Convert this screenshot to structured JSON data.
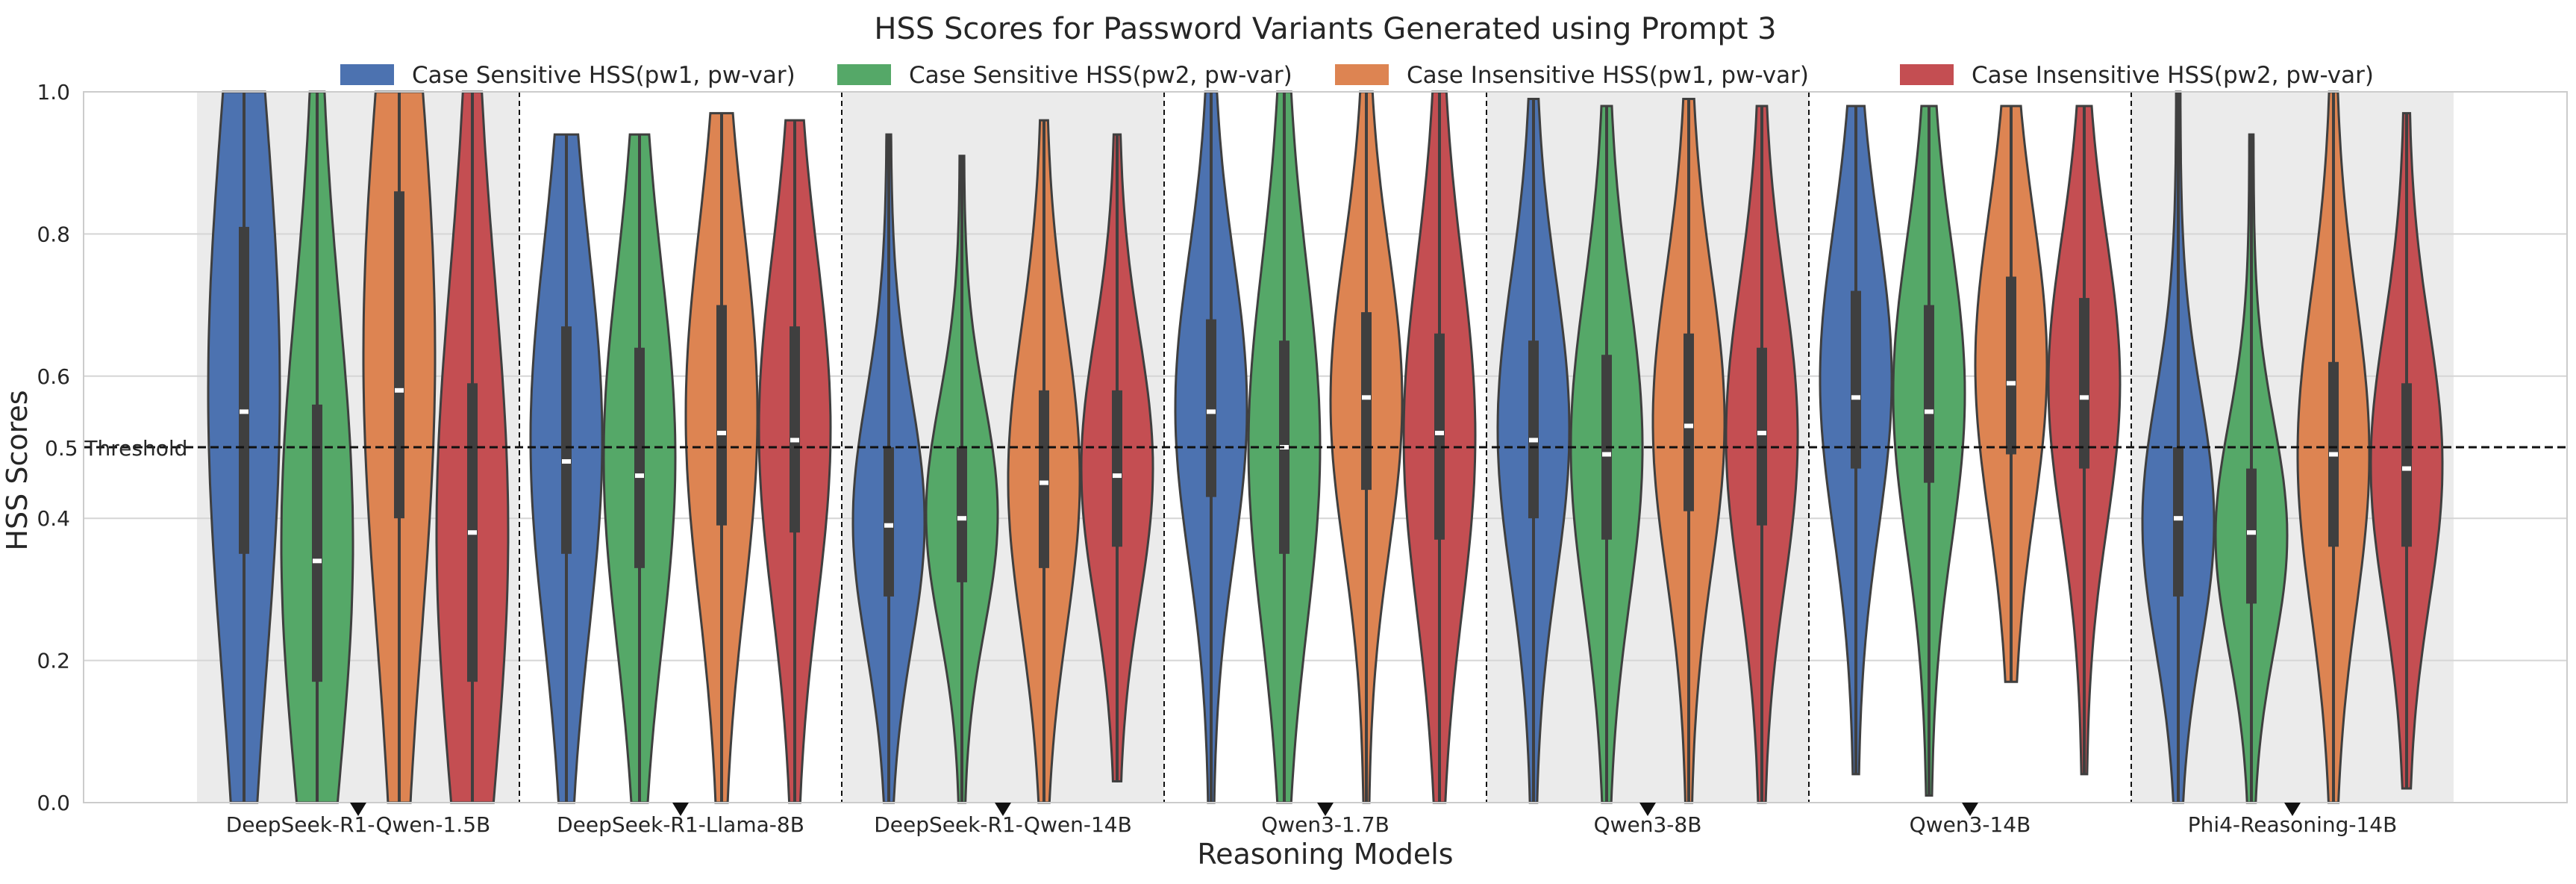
{
  "chart_data": {
    "type": "violin",
    "title": "HSS Scores for Password Variants Generated using Prompt 3",
    "xlabel": "Reasoning Models",
    "ylabel": "HSS Scores",
    "ylim": [
      0,
      1.0
    ],
    "yticks": [
      "0.0",
      "0.2",
      "0.4",
      "0.5",
      "0.6",
      "0.8",
      "1.0"
    ],
    "threshold": {
      "value": 0.5,
      "label": "0.5 Threshold"
    },
    "legend_position": "top",
    "grid": true,
    "categories": [
      "DeepSeek-R1-Qwen-1.5B",
      "DeepSeek-R1-Llama-8B",
      "DeepSeek-R1-Qwen-14B",
      "Qwen3-1.7B",
      "Qwen3-8B",
      "Qwen3-14B",
      "Phi4-Reasoning-14B"
    ],
    "shaded_categories": [
      0,
      2,
      4,
      6
    ],
    "marker_offsets": [
      0.45,
      0.45,
      0.45,
      0.45,
      0.45,
      0.45,
      0.45
    ],
    "series": [
      {
        "name": "Case Sensitive HSS(pw1, pw-var)",
        "color": "#4c72b0",
        "stats": [
          {
            "min": 0.0,
            "max": 1.0,
            "q1": 0.35,
            "median": 0.55,
            "q3": 0.81
          },
          {
            "min": 0.0,
            "max": 0.94,
            "q1": 0.35,
            "median": 0.48,
            "q3": 0.67
          },
          {
            "min": 0.0,
            "max": 0.94,
            "q1": 0.29,
            "median": 0.39,
            "q3": 0.5
          },
          {
            "min": 0.0,
            "max": 1.0,
            "q1": 0.43,
            "median": 0.55,
            "q3": 0.68
          },
          {
            "min": 0.0,
            "max": 0.99,
            "q1": 0.4,
            "median": 0.51,
            "q3": 0.65
          },
          {
            "min": 0.04,
            "max": 0.98,
            "q1": 0.47,
            "median": 0.57,
            "q3": 0.72
          },
          {
            "min": 0.0,
            "max": 1.0,
            "q1": 0.29,
            "median": 0.4,
            "q3": 0.5
          }
        ]
      },
      {
        "name": "Case Sensitive HSS(pw2, pw-var)",
        "color": "#55a868",
        "stats": [
          {
            "min": 0.0,
            "max": 1.0,
            "q1": 0.17,
            "median": 0.34,
            "q3": 0.56
          },
          {
            "min": 0.0,
            "max": 0.94,
            "q1": 0.33,
            "median": 0.46,
            "q3": 0.64
          },
          {
            "min": 0.0,
            "max": 0.91,
            "q1": 0.31,
            "median": 0.4,
            "q3": 0.5
          },
          {
            "min": 0.0,
            "max": 1.0,
            "q1": 0.35,
            "median": 0.5,
            "q3": 0.65
          },
          {
            "min": 0.0,
            "max": 0.98,
            "q1": 0.37,
            "median": 0.49,
            "q3": 0.63
          },
          {
            "min": 0.01,
            "max": 0.98,
            "q1": 0.45,
            "median": 0.55,
            "q3": 0.7
          },
          {
            "min": 0.0,
            "max": 0.94,
            "q1": 0.28,
            "median": 0.38,
            "q3": 0.47
          }
        ]
      },
      {
        "name": "Case Insensitive HSS(pw1, pw-var)",
        "color": "#dd8452",
        "stats": [
          {
            "min": 0.0,
            "max": 1.0,
            "q1": 0.4,
            "median": 0.58,
            "q3": 0.86
          },
          {
            "min": 0.0,
            "max": 0.97,
            "q1": 0.39,
            "median": 0.52,
            "q3": 0.7
          },
          {
            "min": 0.0,
            "max": 0.96,
            "q1": 0.33,
            "median": 0.45,
            "q3": 0.58
          },
          {
            "min": 0.0,
            "max": 1.0,
            "q1": 0.44,
            "median": 0.57,
            "q3": 0.69
          },
          {
            "min": 0.0,
            "max": 0.99,
            "q1": 0.41,
            "median": 0.53,
            "q3": 0.66
          },
          {
            "min": 0.17,
            "max": 0.98,
            "q1": 0.49,
            "median": 0.59,
            "q3": 0.74
          },
          {
            "min": 0.0,
            "max": 1.0,
            "q1": 0.36,
            "median": 0.49,
            "q3": 0.62
          }
        ]
      },
      {
        "name": "Case Insensitive HSS(pw2, pw-var)",
        "color": "#c44e52",
        "stats": [
          {
            "min": 0.0,
            "max": 1.0,
            "q1": 0.17,
            "median": 0.38,
            "q3": 0.59
          },
          {
            "min": 0.0,
            "max": 0.96,
            "q1": 0.38,
            "median": 0.51,
            "q3": 0.67
          },
          {
            "min": 0.03,
            "max": 0.94,
            "q1": 0.36,
            "median": 0.46,
            "q3": 0.58
          },
          {
            "min": 0.0,
            "max": 1.0,
            "q1": 0.37,
            "median": 0.52,
            "q3": 0.66
          },
          {
            "min": 0.0,
            "max": 0.98,
            "q1": 0.39,
            "median": 0.52,
            "q3": 0.64
          },
          {
            "min": 0.04,
            "max": 0.98,
            "q1": 0.47,
            "median": 0.57,
            "q3": 0.71
          },
          {
            "min": 0.02,
            "max": 0.97,
            "q1": 0.36,
            "median": 0.47,
            "q3": 0.59
          }
        ]
      }
    ]
  }
}
